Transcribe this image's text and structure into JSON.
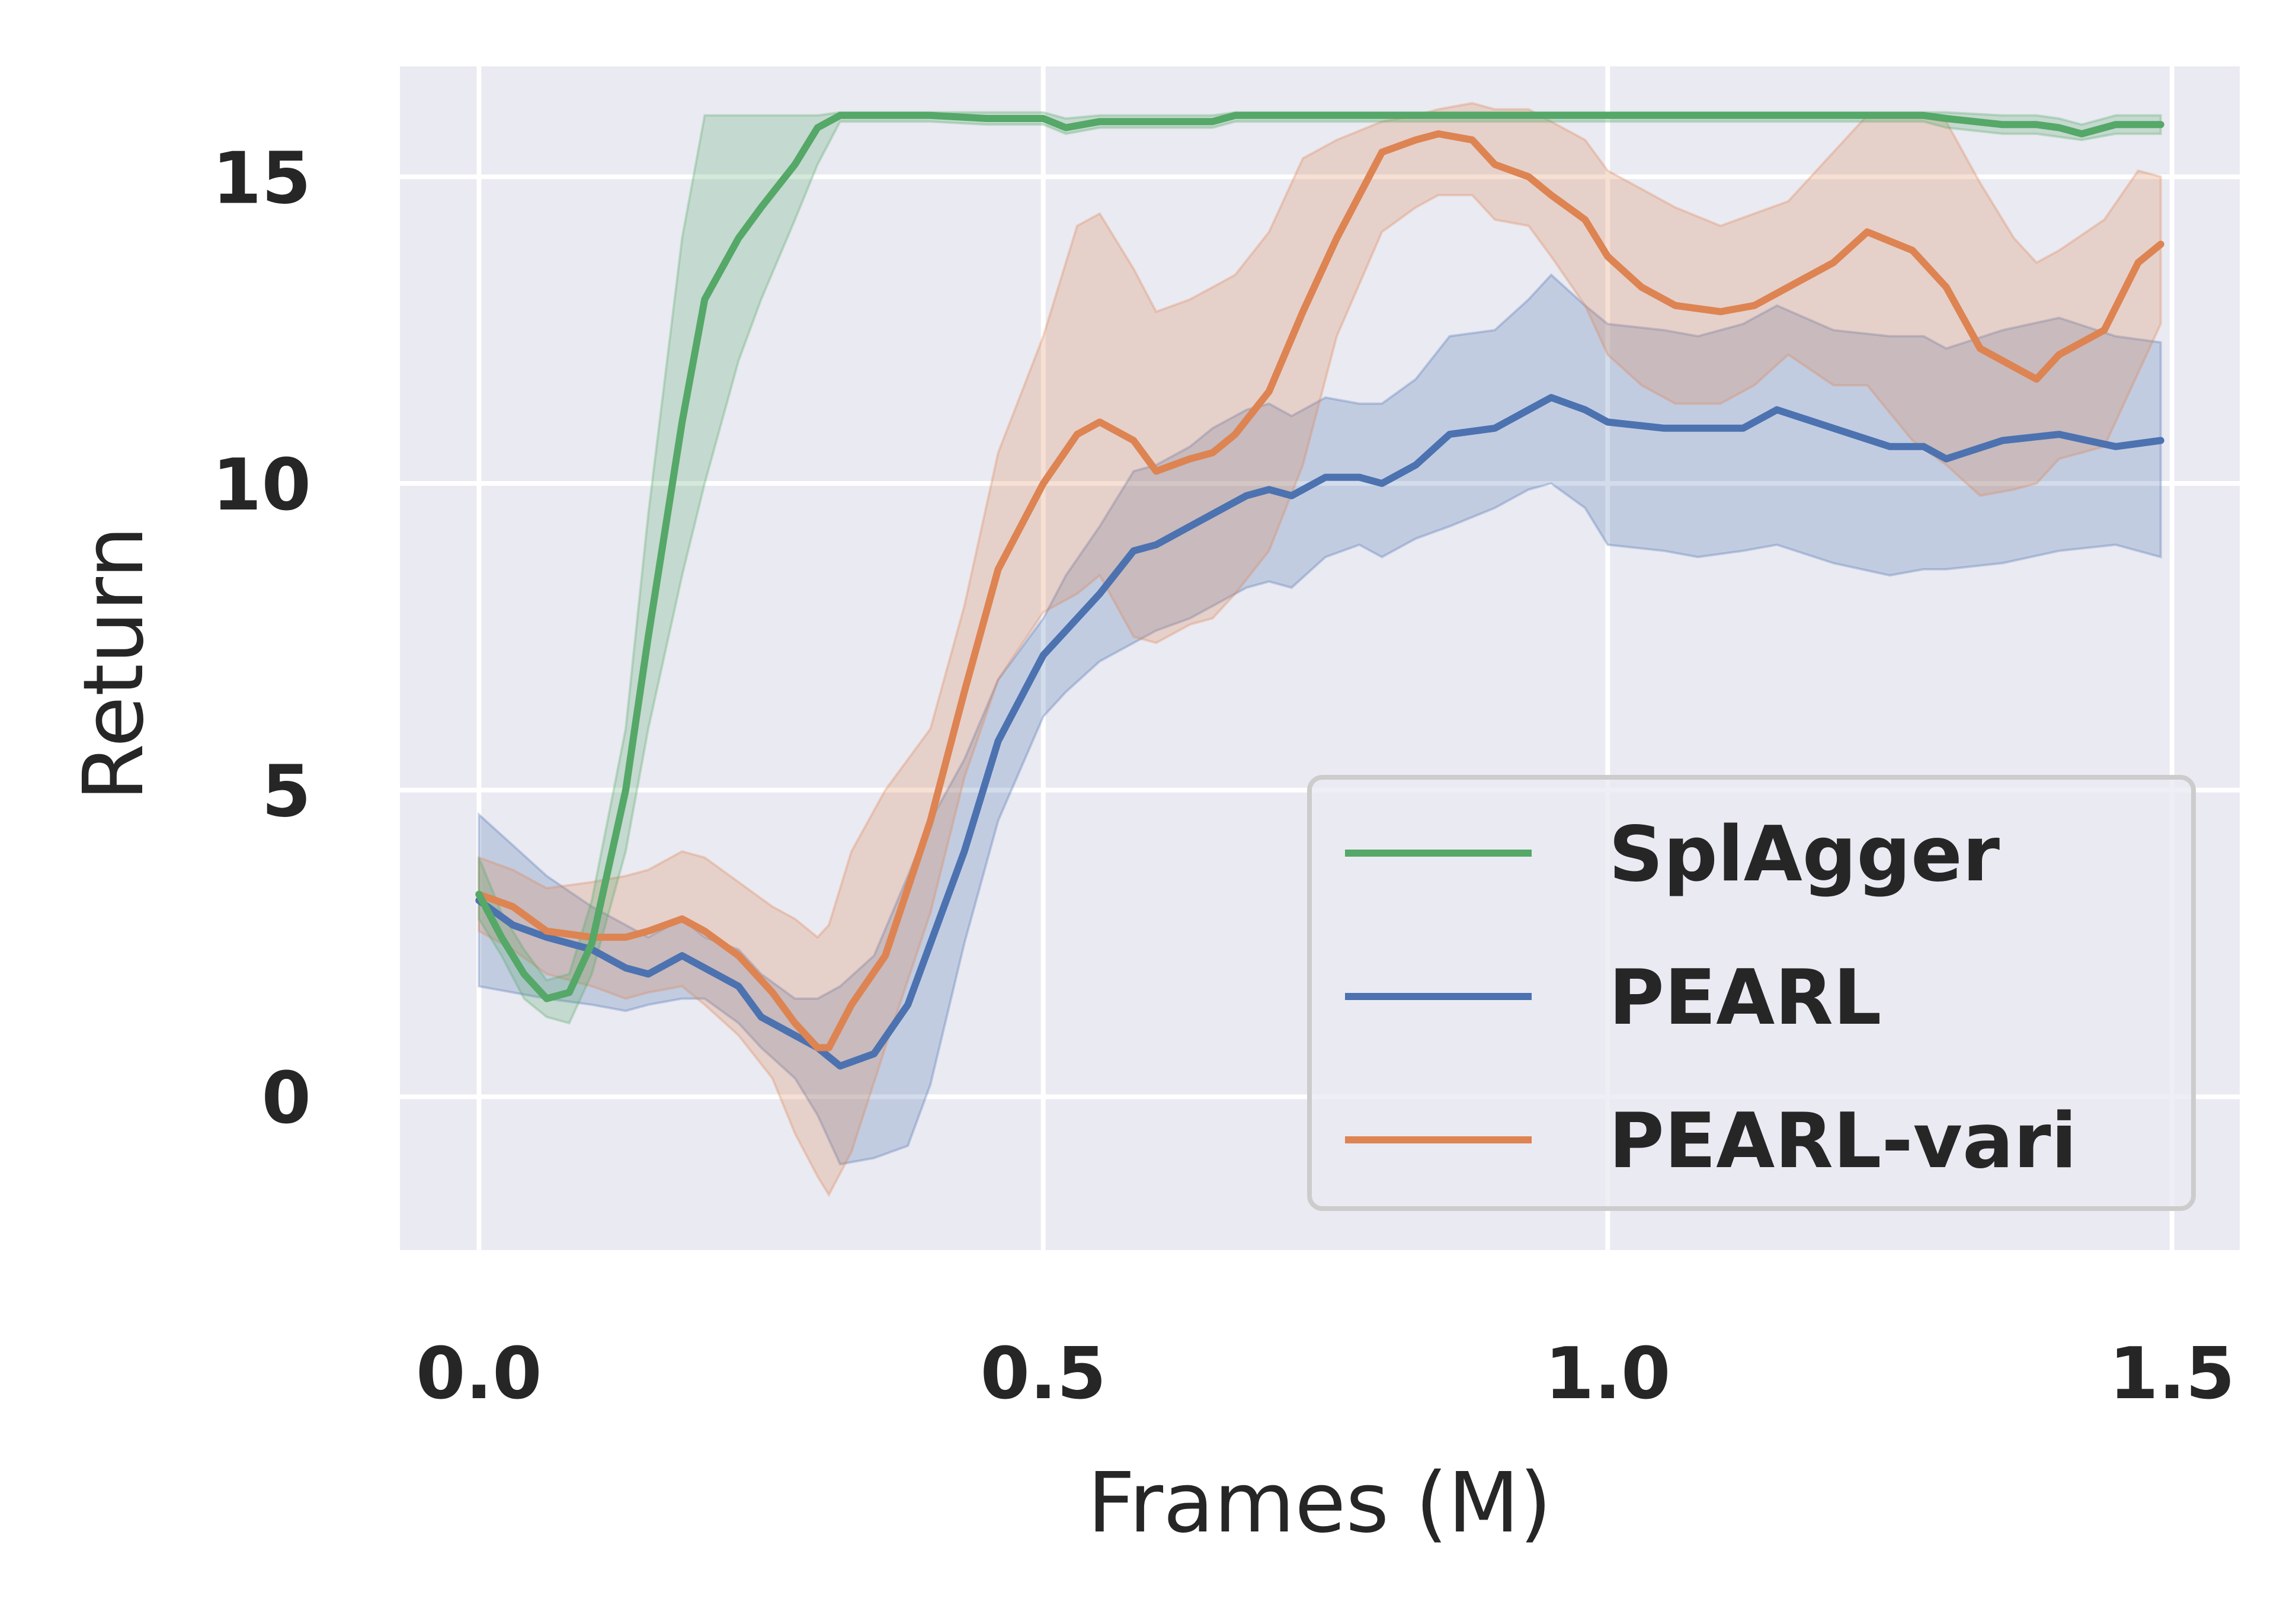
{
  "chart_data": {
    "type": "line",
    "xlabel": "Frames (M)",
    "ylabel": "Return",
    "xlim": [
      -0.07,
      1.56
    ],
    "ylim": [
      -2.5,
      16.8
    ],
    "xticks": [
      0.0,
      0.5,
      1.0,
      1.5
    ],
    "xtick_labels": [
      "0.0",
      "0.5",
      "1.0",
      "1.5"
    ],
    "yticks": [
      0,
      5,
      10,
      15
    ],
    "ytick_labels": [
      "0",
      "5",
      "10",
      "15"
    ],
    "grid": true,
    "legend_position": "lower-right",
    "series": [
      {
        "name": "SplAgger",
        "color": "#55a868",
        "x": [
          0.0,
          0.02,
          0.04,
          0.06,
          0.08,
          0.1,
          0.13,
          0.15,
          0.18,
          0.2,
          0.23,
          0.25,
          0.28,
          0.3,
          0.32,
          0.35,
          0.4,
          0.45,
          0.5,
          0.52,
          0.55,
          0.6,
          0.65,
          0.67,
          0.7,
          0.8,
          0.9,
          1.0,
          1.1,
          1.2,
          1.28,
          1.3,
          1.35,
          1.38,
          1.4,
          1.42,
          1.45,
          1.49
        ],
        "y": [
          3.3,
          2.6,
          2.0,
          1.6,
          1.7,
          2.5,
          5.0,
          7.5,
          11.0,
          13.0,
          14.0,
          14.5,
          15.2,
          15.8,
          16.0,
          16.0,
          16.0,
          15.95,
          15.95,
          15.8,
          15.9,
          15.9,
          15.9,
          16.0,
          16.0,
          16.0,
          16.0,
          16.0,
          16.0,
          16.0,
          16.0,
          15.95,
          15.85,
          15.85,
          15.8,
          15.7,
          15.85,
          15.85
        ],
        "lower": [
          2.9,
          2.3,
          1.6,
          1.3,
          1.2,
          2.0,
          4.0,
          6.0,
          8.5,
          10.0,
          12.0,
          13.0,
          14.3,
          15.2,
          15.9,
          15.9,
          15.9,
          15.85,
          15.85,
          15.7,
          15.8,
          15.8,
          15.8,
          15.9,
          15.9,
          15.9,
          15.9,
          15.9,
          15.9,
          15.9,
          15.9,
          15.8,
          15.7,
          15.7,
          15.65,
          15.6,
          15.7,
          15.7
        ],
        "upper": [
          3.9,
          3.0,
          2.4,
          1.9,
          2.0,
          3.2,
          6.0,
          9.5,
          14.0,
          16.0,
          16.0,
          16.0,
          16.0,
          16.0,
          16.05,
          16.05,
          16.05,
          16.05,
          16.05,
          15.95,
          16.0,
          16.0,
          16.0,
          16.05,
          16.05,
          16.05,
          16.05,
          16.05,
          16.05,
          16.05,
          16.05,
          16.05,
          16.0,
          16.0,
          15.95,
          15.85,
          16.0,
          16.0
        ]
      },
      {
        "name": "PEARL",
        "color": "#4c72b0",
        "x": [
          0.0,
          0.03,
          0.06,
          0.1,
          0.13,
          0.15,
          0.18,
          0.2,
          0.23,
          0.25,
          0.28,
          0.3,
          0.32,
          0.35,
          0.38,
          0.4,
          0.43,
          0.46,
          0.5,
          0.52,
          0.55,
          0.58,
          0.6,
          0.63,
          0.65,
          0.68,
          0.7,
          0.72,
          0.75,
          0.78,
          0.8,
          0.83,
          0.86,
          0.9,
          0.93,
          0.95,
          0.98,
          1.0,
          1.05,
          1.08,
          1.12,
          1.15,
          1.2,
          1.25,
          1.28,
          1.3,
          1.35,
          1.4,
          1.45,
          1.49
        ],
        "y": [
          3.2,
          2.8,
          2.6,
          2.4,
          2.1,
          2.0,
          2.3,
          2.1,
          1.8,
          1.3,
          1.0,
          0.8,
          0.5,
          0.7,
          1.5,
          2.5,
          4.0,
          5.8,
          7.2,
          7.6,
          8.2,
          8.9,
          9.0,
          9.3,
          9.5,
          9.8,
          9.9,
          9.8,
          10.1,
          10.1,
          10.0,
          10.3,
          10.8,
          10.9,
          11.2,
          11.4,
          11.2,
          11.0,
          10.9,
          10.9,
          10.9,
          11.2,
          10.9,
          10.6,
          10.6,
          10.4,
          10.7,
          10.8,
          10.6,
          10.7
        ],
        "lower": [
          1.8,
          1.7,
          1.6,
          1.5,
          1.4,
          1.5,
          1.6,
          1.6,
          1.2,
          0.8,
          0.3,
          -0.3,
          -1.1,
          -1.0,
          -0.8,
          0.2,
          2.5,
          4.5,
          6.2,
          6.6,
          7.1,
          7.4,
          7.6,
          7.8,
          8.0,
          8.3,
          8.4,
          8.3,
          8.8,
          9.0,
          8.8,
          9.1,
          9.3,
          9.6,
          9.9,
          10.0,
          9.6,
          9.0,
          8.9,
          8.8,
          8.9,
          9.0,
          8.7,
          8.5,
          8.6,
          8.6,
          8.7,
          8.9,
          9.0,
          8.8
        ],
        "upper": [
          4.6,
          4.1,
          3.6,
          3.1,
          2.8,
          2.6,
          2.9,
          2.6,
          2.4,
          2.0,
          1.6,
          1.6,
          1.8,
          2.3,
          3.6,
          4.5,
          5.5,
          6.8,
          7.8,
          8.5,
          9.3,
          10.2,
          10.3,
          10.6,
          10.9,
          11.2,
          11.3,
          11.1,
          11.4,
          11.3,
          11.3,
          11.7,
          12.4,
          12.5,
          13.0,
          13.4,
          12.9,
          12.6,
          12.5,
          12.4,
          12.6,
          12.9,
          12.5,
          12.4,
          12.4,
          12.2,
          12.5,
          12.7,
          12.4,
          12.3
        ]
      },
      {
        "name": "PEARL-vari",
        "color": "#dd8452",
        "x": [
          0.0,
          0.03,
          0.06,
          0.1,
          0.13,
          0.15,
          0.18,
          0.2,
          0.23,
          0.26,
          0.28,
          0.3,
          0.31,
          0.33,
          0.36,
          0.4,
          0.43,
          0.46,
          0.5,
          0.53,
          0.55,
          0.58,
          0.6,
          0.63,
          0.65,
          0.67,
          0.7,
          0.73,
          0.76,
          0.8,
          0.83,
          0.85,
          0.88,
          0.9,
          0.93,
          0.95,
          0.98,
          1.0,
          1.03,
          1.06,
          1.1,
          1.13,
          1.16,
          1.2,
          1.23,
          1.27,
          1.3,
          1.33,
          1.36,
          1.38,
          1.4,
          1.44,
          1.47,
          1.49
        ],
        "y": [
          3.3,
          3.1,
          2.7,
          2.6,
          2.6,
          2.7,
          2.9,
          2.7,
          2.3,
          1.7,
          1.2,
          0.8,
          0.8,
          1.5,
          2.3,
          4.5,
          6.6,
          8.6,
          10.0,
          10.8,
          11.0,
          10.7,
          10.2,
          10.4,
          10.5,
          10.8,
          11.5,
          12.8,
          14.0,
          15.4,
          15.6,
          15.7,
          15.6,
          15.2,
          15.0,
          14.7,
          14.3,
          13.7,
          13.2,
          12.9,
          12.8,
          12.9,
          13.2,
          13.6,
          14.1,
          13.8,
          13.2,
          12.2,
          11.9,
          11.7,
          12.1,
          12.5,
          13.6,
          13.9
        ],
        "lower": [
          2.7,
          2.4,
          2.0,
          1.8,
          1.6,
          1.7,
          1.8,
          1.5,
          1.0,
          0.3,
          -0.6,
          -1.3,
          -1.6,
          -0.9,
          0.8,
          3.0,
          5.2,
          6.8,
          7.9,
          8.2,
          8.5,
          7.5,
          7.4,
          7.7,
          7.8,
          8.2,
          8.9,
          10.3,
          12.4,
          14.1,
          14.5,
          14.7,
          14.7,
          14.3,
          14.2,
          13.7,
          12.9,
          12.1,
          11.6,
          11.3,
          11.3,
          11.6,
          12.1,
          11.6,
          11.6,
          10.7,
          10.3,
          9.8,
          9.9,
          10.0,
          10.4,
          10.6,
          11.8,
          12.6
        ],
        "upper": [
          3.9,
          3.7,
          3.4,
          3.5,
          3.6,
          3.7,
          4.0,
          3.9,
          3.5,
          3.1,
          2.9,
          2.6,
          2.8,
          4.0,
          5.0,
          6.0,
          8.0,
          10.5,
          12.4,
          14.2,
          14.4,
          13.5,
          12.8,
          13.0,
          13.2,
          13.4,
          14.1,
          15.3,
          15.6,
          15.9,
          16.0,
          16.1,
          16.2,
          16.1,
          16.1,
          15.9,
          15.6,
          15.1,
          14.8,
          14.5,
          14.2,
          14.4,
          14.6,
          15.4,
          16.0,
          16.0,
          15.9,
          14.9,
          14.0,
          13.6,
          13.8,
          14.3,
          15.1,
          15.0
        ]
      }
    ]
  }
}
